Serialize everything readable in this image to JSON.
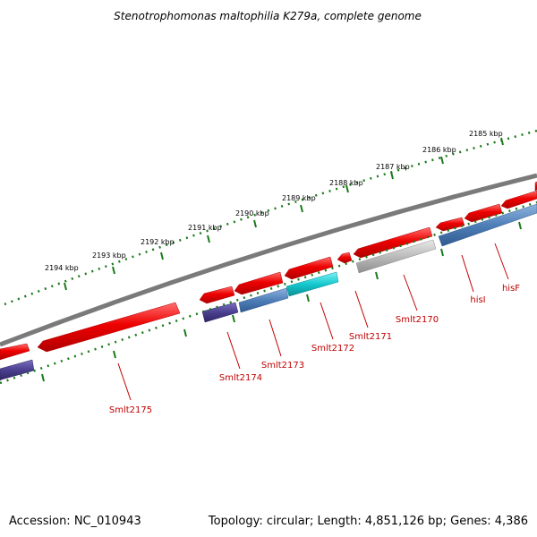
{
  "title": "Stenotrophomonas maltophilia K279a, complete genome",
  "footer": {
    "accession": "Accession: NC_010943",
    "summary": "Topology: circular; Length: 4,851,126 bp; Genes: 4,386"
  },
  "ticks": [
    {
      "label": "2185 kbp"
    },
    {
      "label": "2186 kbp"
    },
    {
      "label": "2187 kbp"
    },
    {
      "label": "2188 kbp"
    },
    {
      "label": "2189 kbp"
    },
    {
      "label": "2190 kbp"
    },
    {
      "label": "2191 kbp"
    },
    {
      "label": "2192 kbp"
    },
    {
      "label": "2193 kbp"
    },
    {
      "label": "2194 kbp"
    }
  ],
  "genes": [
    {
      "label": "hisF"
    },
    {
      "label": "hisI"
    },
    {
      "label": "Smlt2170"
    },
    {
      "label": "Smlt2171"
    },
    {
      "label": "Smlt2172"
    },
    {
      "label": "Smlt2173"
    },
    {
      "label": "Smlt2174"
    },
    {
      "label": "Smlt2175"
    }
  ],
  "colors": {
    "forward_feature": "#ee0000",
    "reverse_blue": "#4f7fb8",
    "reverse_purple": "#4b3f8f",
    "reverse_cyan": "#15c9cf",
    "reverse_gray": "#bbbbbb",
    "backbone": "#808080",
    "ticks": "#1a7a1a",
    "gene_label": "#c00000"
  }
}
